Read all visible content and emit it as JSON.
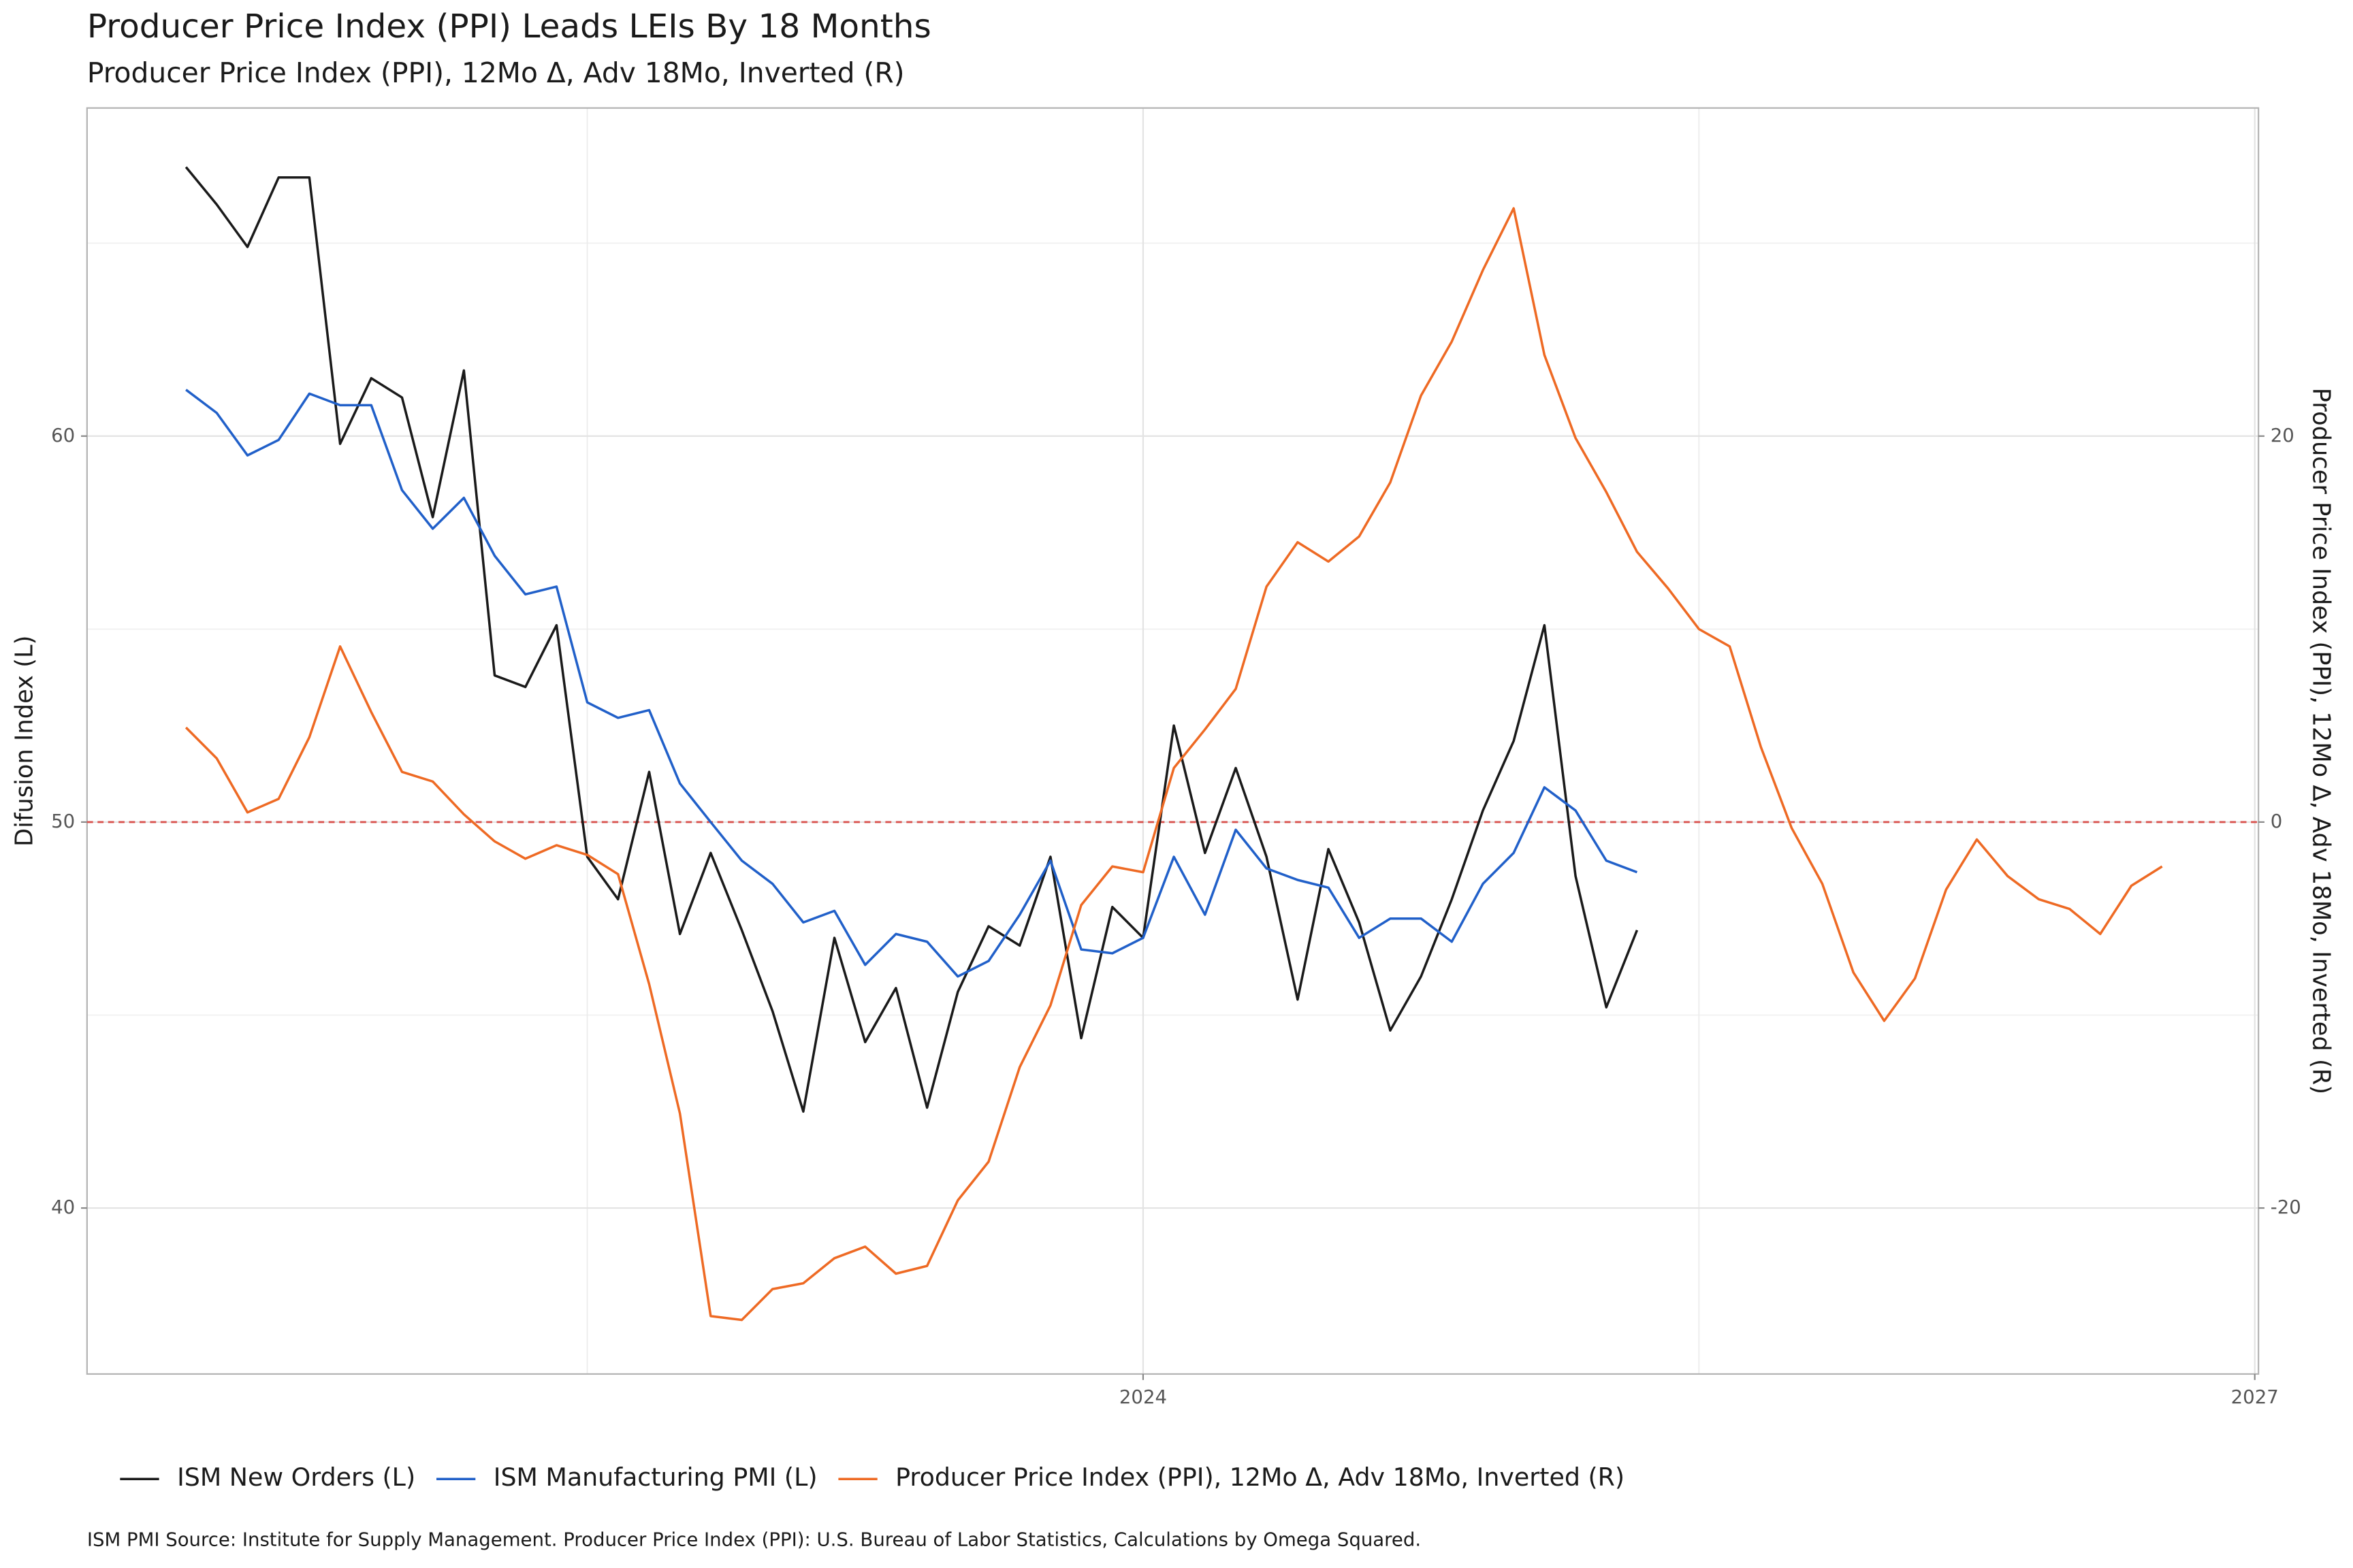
{
  "chart_data": {
    "type": "line",
    "title": "Producer Price Index (PPI)  Leads LEIs By  18  Months",
    "subtitle": "Producer Price Index (PPI), 12Mo Δ, Adv 18Mo, Inverted (R)",
    "ylabel": "Difusion Index (L)",
    "y2label": "Producer Price Index (PPI), 12Mo Δ, Adv 18Mo, Inverted (R)",
    "caption": "ISM PMI Source: Institute for Supply Management. Producer Price Index (PPI): U.S. Bureau of Labor Statistics, Calculations by Omega Squared.",
    "x": [
      2021.417,
      2021.5,
      2021.583,
      2021.667,
      2021.75,
      2021.833,
      2021.917,
      2022.0,
      2022.083,
      2022.167,
      2022.25,
      2022.333,
      2022.417,
      2022.5,
      2022.583,
      2022.667,
      2022.75,
      2022.833,
      2022.917,
      2023.0,
      2023.083,
      2023.167,
      2023.25,
      2023.333,
      2023.417,
      2023.5,
      2023.583,
      2023.667,
      2023.75,
      2023.833,
      2023.917,
      2024.0,
      2024.083,
      2024.167,
      2024.25,
      2024.333,
      2024.417,
      2024.5,
      2024.583,
      2024.667,
      2024.75,
      2024.833,
      2024.917,
      2025.0,
      2025.083,
      2025.167,
      2025.25,
      2025.333,
      2025.417,
      2025.5,
      2025.583,
      2025.667,
      2025.75,
      2025.833,
      2025.917,
      2026.0,
      2026.083,
      2026.167,
      2026.25,
      2026.333,
      2026.417,
      2026.5,
      2026.583,
      2026.667,
      2026.75
    ],
    "xlim": [
      2021.15,
      2027.01
    ],
    "xticks": [
      2024,
      2027
    ],
    "ylim": [
      35.7,
      68.5
    ],
    "yticks": [
      40,
      50,
      60
    ],
    "y2lim": [
      -28.6,
      37
    ],
    "y2ticks": [
      -20,
      0,
      20
    ],
    "hline": 50,
    "hline_color": "#d9534f",
    "grid": true,
    "legend": "bottom",
    "series": [
      {
        "name": "ISM New Orders (L)",
        "color": "#1a1a1a",
        "values": [
          66.97,
          66.0,
          64.9,
          66.7,
          66.7,
          59.8,
          61.5,
          61.0,
          57.9,
          61.7,
          53.8,
          53.5,
          55.1,
          49.1,
          48.0,
          51.3,
          47.1,
          49.2,
          47.2,
          45.1,
          42.5,
          47.0,
          44.3,
          45.7,
          42.6,
          45.6,
          47.3,
          46.8,
          49.1,
          44.4,
          47.8,
          47.0,
          52.5,
          49.2,
          51.4,
          49.1,
          45.4,
          49.3,
          47.4,
          44.6,
          46.0,
          48.0,
          50.3,
          52.1,
          55.1,
          48.6,
          45.2,
          47.2,
          null,
          null,
          null,
          null,
          null,
          null,
          null,
          null,
          null,
          null,
          null,
          null,
          null,
          null,
          null,
          null,
          null
        ]
      },
      {
        "name": "ISM Manufacturing PMI (L)",
        "color": "#2160c9",
        "values": [
          61.2,
          60.6,
          59.5,
          59.9,
          61.1,
          60.8,
          60.8,
          58.6,
          57.6,
          58.4,
          56.9,
          55.9,
          56.1,
          53.1,
          52.7,
          52.9,
          51.0,
          50.0,
          49.0,
          48.4,
          47.4,
          47.7,
          46.3,
          47.1,
          46.9,
          46.0,
          46.4,
          47.6,
          49.0,
          46.7,
          46.6,
          47.0,
          49.1,
          47.6,
          49.8,
          48.8,
          48.5,
          48.3,
          47.0,
          47.5,
          47.5,
          46.9,
          48.4,
          49.2,
          50.9,
          50.3,
          49.0,
          48.7,
          null,
          null,
          null,
          null,
          null,
          null,
          null,
          null,
          null,
          null,
          null,
          null,
          null,
          null,
          null,
          null,
          null
        ]
      },
      {
        "name": "Producer Price Index (PPI), 12Mo Δ, Adv 18Mo, Inverted (R)",
        "color": "#ee6a24",
        "axis": "y2",
        "values": [
          4.9,
          3.3,
          0.5,
          1.2,
          4.4,
          9.1,
          5.7,
          2.6,
          2.1,
          0.4,
          -1.0,
          -1.9,
          -1.2,
          -1.7,
          -2.7,
          -8.4,
          -15.1,
          -25.6,
          -25.8,
          -24.2,
          -23.9,
          -22.6,
          -22.0,
          -23.4,
          -23.0,
          -19.6,
          -17.6,
          -12.7,
          -9.5,
          -4.3,
          -2.3,
          -2.6,
          2.8,
          4.8,
          6.9,
          12.2,
          14.5,
          13.5,
          14.8,
          17.6,
          22.1,
          24.9,
          28.6,
          31.8,
          24.2,
          19.9,
          17.1,
          14.0,
          12.1,
          10.0,
          9.1,
          3.9,
          -0.3,
          -3.2,
          -7.8,
          -10.3,
          -8.1,
          -3.5,
          -0.9,
          -2.8,
          -4.0,
          -4.5,
          -5.8,
          -3.3,
          -2.3
        ]
      }
    ]
  }
}
